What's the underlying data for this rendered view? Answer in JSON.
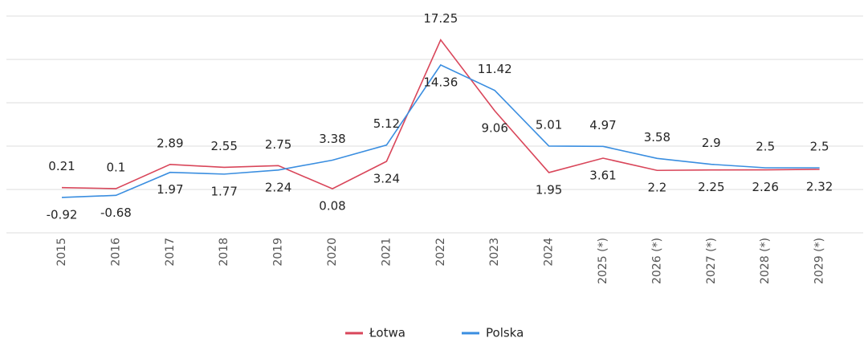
{
  "chart_data": {
    "type": "line",
    "categories": [
      "2015",
      "2016",
      "2017",
      "2018",
      "2019",
      "2020",
      "2021",
      "2022",
      "2023",
      "2024",
      "2025 (*)",
      "2026 (*)",
      "2027 (*)",
      "2028 (*)",
      "2029 (*)"
    ],
    "series": [
      {
        "name": "Łotwa",
        "color": "#d9465a",
        "values": [
          0.21,
          0.1,
          2.89,
          2.55,
          2.75,
          0.08,
          3.24,
          17.25,
          9.06,
          1.95,
          3.61,
          2.2,
          2.25,
          2.26,
          2.32
        ]
      },
      {
        "name": "Polska",
        "color": "#3a8ee0",
        "values": [
          -0.92,
          -0.68,
          1.97,
          1.77,
          2.24,
          3.38,
          5.12,
          14.36,
          11.42,
          5.01,
          4.97,
          3.58,
          2.9,
          2.5,
          2.5
        ]
      }
    ],
    "ylim": [
      -5,
      20
    ],
    "yticks": [
      -5,
      0,
      5,
      10,
      15,
      20
    ],
    "grid": true,
    "legend": "bottom"
  }
}
